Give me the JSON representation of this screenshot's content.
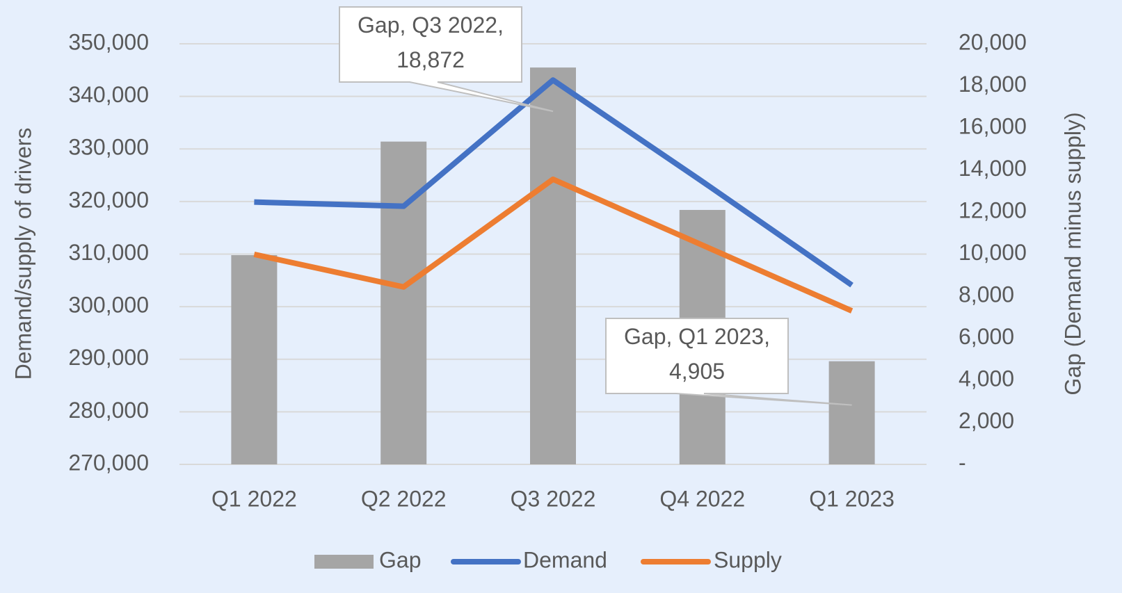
{
  "chart_data": {
    "type": "combo",
    "categories": [
      "Q1 2022",
      "Q2 2022",
      "Q3 2022",
      "Q4 2022",
      "Q1 2023"
    ],
    "series": [
      {
        "name": "Gap",
        "type": "bar",
        "axis": "y2",
        "color": "#a5a5a5",
        "values": [
          9950,
          15350,
          18872,
          12100,
          4905
        ],
        "value_labels": [
          null,
          null,
          "Gap, Q3 2022, 18,872",
          null,
          "Gap, Q1 2023, 4,905"
        ]
      },
      {
        "name": "Demand",
        "type": "line",
        "color": "#4472c4",
        "values": [
          319900,
          319100,
          343100,
          323800,
          304100
        ]
      },
      {
        "name": "Supply",
        "type": "line",
        "color": "#ed7d31",
        "values": [
          309950,
          303750,
          324228,
          311700,
          299195
        ]
      }
    ],
    "ylabel": "Demand/supply of drivers",
    "y2label": "Gap (Demand minus supply)",
    "ylim": [
      270000,
      350000
    ],
    "yticks": [
      {
        "value": 270000,
        "label": "270,000"
      },
      {
        "value": 280000,
        "label": "280,000"
      },
      {
        "value": 290000,
        "label": "290,000"
      },
      {
        "value": 300000,
        "label": "300,000"
      },
      {
        "value": 310000,
        "label": "310,000"
      },
      {
        "value": 320000,
        "label": "320,000"
      },
      {
        "value": 330000,
        "label": "330,000"
      },
      {
        "value": 340000,
        "label": "340,000"
      },
      {
        "value": 350000,
        "label": "350,000"
      }
    ],
    "y2lim": [
      0,
      20000
    ],
    "y2ticks": [
      {
        "value": 0,
        "label": "-"
      },
      {
        "value": 2000,
        "label": "2,000"
      },
      {
        "value": 4000,
        "label": "4,000"
      },
      {
        "value": 6000,
        "label": "6,000"
      },
      {
        "value": 8000,
        "label": "8,000"
      },
      {
        "value": 10000,
        "label": "10,000"
      },
      {
        "value": 12000,
        "label": "12,000"
      },
      {
        "value": 14000,
        "label": "14,000"
      },
      {
        "value": 16000,
        "label": "16,000"
      },
      {
        "value": 18000,
        "label": "18,000"
      },
      {
        "value": 20000,
        "label": "20,000"
      }
    ],
    "grid": true,
    "legend": "bottom"
  }
}
